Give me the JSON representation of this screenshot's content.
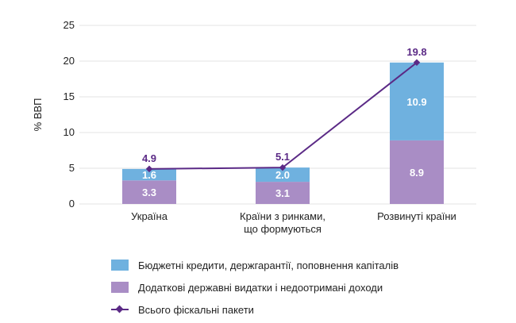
{
  "chart_data": {
    "type": "bar",
    "stacked": true,
    "ylabel": "% ВВП",
    "ylim": [
      0,
      25
    ],
    "yticks": [
      0,
      5,
      10,
      15,
      20,
      25
    ],
    "categories": [
      [
        "Україна"
      ],
      [
        "Країни з ринками,",
        "що формуються"
      ],
      [
        "Розвинуті країни"
      ]
    ],
    "series": [
      {
        "name": "Додаткові державні видатки і недоотримані доходи",
        "kind": "bar",
        "values": [
          3.3,
          3.1,
          8.9
        ],
        "labels": [
          "3.3",
          "3.1",
          "8.9"
        ]
      },
      {
        "name": "Бюджетні кредити, держгарантії, поповнення капіталів",
        "kind": "bar",
        "values": [
          1.6,
          2.0,
          10.9
        ],
        "labels": [
          "1.6",
          "2.0",
          "10.9"
        ]
      },
      {
        "name": "Всього фіскальні пакети",
        "kind": "line",
        "values": [
          4.9,
          5.1,
          19.8
        ],
        "labels": [
          "4.9",
          "5.1",
          "19.8"
        ]
      }
    ],
    "colors": {
      "bottom": "#a98dc5",
      "top": "#6fb1df",
      "line": "#5b2a86",
      "grid": "#e3e3e3"
    },
    "grid": true,
    "legend": {
      "position": "bottom",
      "items": [
        {
          "label": "Бюджетні кредити, держгарантії, поповнення капіталів",
          "color": "#6fb1df",
          "type": "bar"
        },
        {
          "label": "Додаткові державні видатки і недоотримані доходи",
          "color": "#a98dc5",
          "type": "bar"
        },
        {
          "label": "Всього фіскальні пакети",
          "color": "#5b2a86",
          "type": "line"
        }
      ]
    }
  }
}
